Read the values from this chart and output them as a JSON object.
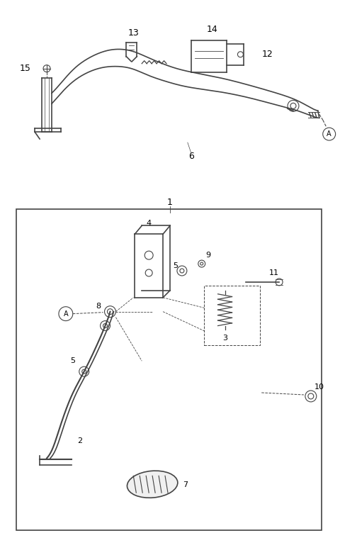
{
  "bg_color": "#ffffff",
  "line_color": "#444444",
  "label_color": "#000000",
  "figsize": [
    4.8,
    7.59
  ],
  "dpi": 100
}
